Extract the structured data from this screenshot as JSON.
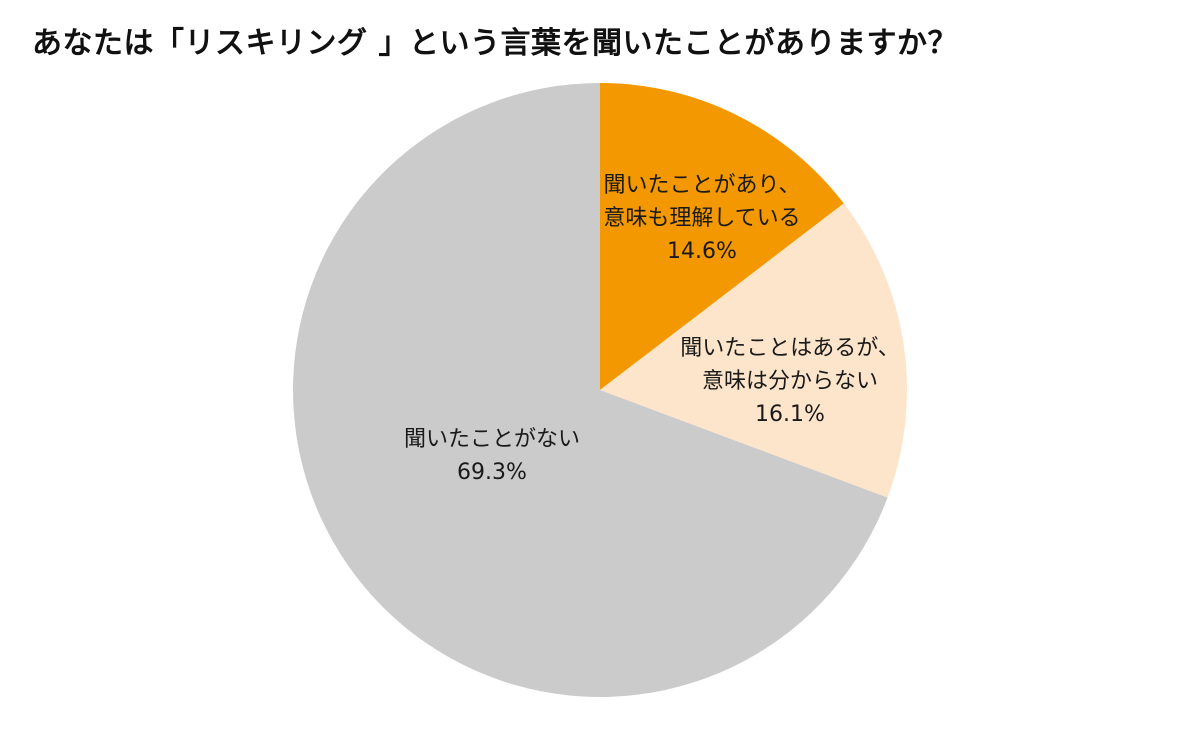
{
  "title": "あなたは「リスキリング 」という言葉を聞いたことがありますか？",
  "chart_data": {
    "type": "pie",
    "title": "あなたは「リスキリング 」という言葉を聞いたことがありますか？",
    "slices": [
      {
        "label_lines": [
          "聞いたことがあり、",
          "意味も理解している"
        ],
        "value": 14.6,
        "value_label": "14.6%",
        "color": "#f39800"
      },
      {
        "label_lines": [
          "聞いたことはあるが、",
          "意味は分からない"
        ],
        "value": 16.1,
        "value_label": "16.1%",
        "color": "#fde5cb"
      },
      {
        "label_lines": [
          "聞いたことがない"
        ],
        "value": 69.3,
        "value_label": "69.3%",
        "color": "#cbcbcb"
      }
    ],
    "start": "12 o'clock",
    "direction": "clockwise",
    "legend": "none"
  }
}
